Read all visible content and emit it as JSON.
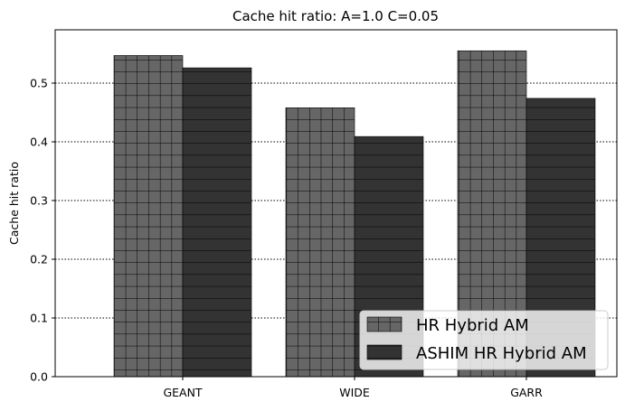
{
  "chart_data": {
    "type": "bar",
    "title": "Cache hit ratio: A=1.0 C=0.05",
    "xlabel": "",
    "ylabel": "Cache hit ratio",
    "categories": [
      "GEANT",
      "WIDE",
      "GARR"
    ],
    "series": [
      {
        "name": "HR Hybrid AM",
        "values": [
          0.547,
          0.458,
          0.555
        ],
        "color": "#666666",
        "hatch": "grid"
      },
      {
        "name": "ASHIM HR Hybrid AM",
        "values": [
          0.526,
          0.409,
          0.474
        ],
        "color": "#333333",
        "hatch": "horizontal"
      }
    ],
    "ylim": [
      0,
      0.58
    ],
    "yticks": [
      "0.0",
      "0.1",
      "0.2",
      "0.3",
      "0.4",
      "0.5"
    ],
    "ytick_values": [
      0,
      0.1,
      0.2,
      0.3,
      0.4,
      0.5
    ],
    "grid": "horizontal dotted",
    "legend_position": "bottom-right"
  }
}
